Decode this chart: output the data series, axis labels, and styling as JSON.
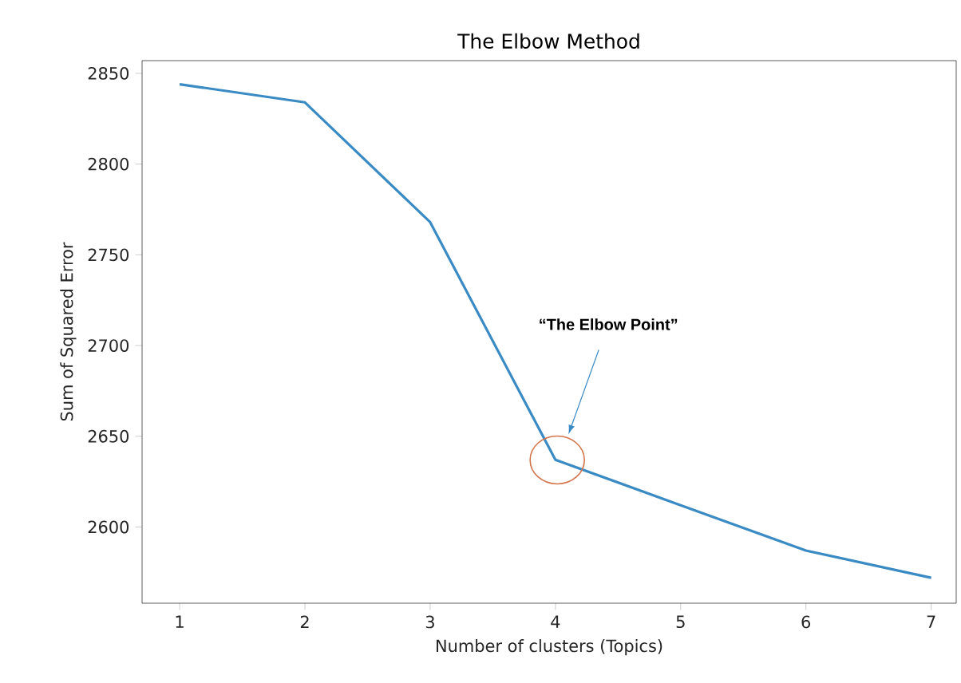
{
  "chart_data": {
    "type": "line",
    "title": "The Elbow Method",
    "xlabel": "Number of clusters (Topics)",
    "ylabel": "Sum of Squared Error",
    "x": [
      1,
      2,
      3,
      4,
      5,
      6,
      7
    ],
    "series": [
      {
        "color": "#3a8ac4",
        "values": [
          2844,
          2834,
          2768,
          2637,
          2612,
          2587,
          2572
        ]
      }
    ],
    "xlim": [
      0.7,
      7.2
    ],
    "ylim": [
      2558,
      2857
    ],
    "xticks": [
      1,
      2,
      3,
      4,
      5,
      6,
      7
    ],
    "yticks": [
      2600,
      2650,
      2700,
      2750,
      2800,
      2850
    ],
    "annotations": [
      "“The Elbow Point”"
    ],
    "grid": false,
    "marker": "none",
    "line_style": "solid"
  }
}
